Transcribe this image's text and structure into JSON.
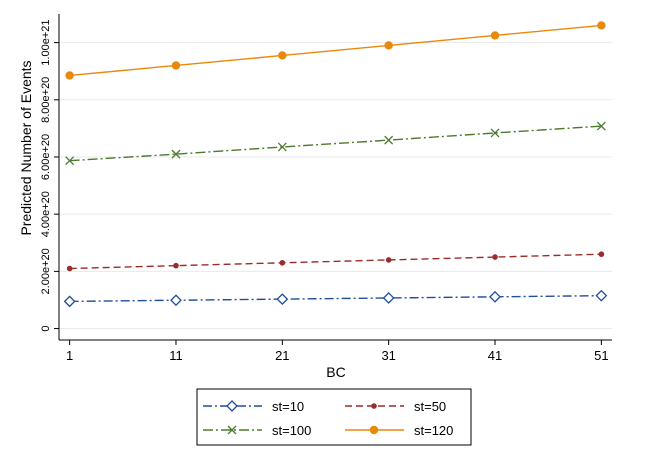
{
  "chart_data": {
    "type": "line",
    "xlabel": "BC",
    "ylabel": "Predicted Number of Events",
    "x": [
      1,
      11,
      21,
      31,
      41,
      51
    ],
    "xticks": [
      "1",
      "11",
      "21",
      "31",
      "41",
      "51"
    ],
    "yticks": [
      {
        "value": 0,
        "label": "0"
      },
      {
        "value": 2e+20,
        "label": "2.00e+20"
      },
      {
        "value": 4e+20,
        "label": "4.00e+20"
      },
      {
        "value": 6e+20,
        "label": "6.00e+20"
      },
      {
        "value": 8e+20,
        "label": "8.00e+20"
      },
      {
        "value": 1e+21,
        "label": "1.00e+21"
      }
    ],
    "ylim": [
      -4e+19,
      1.1e+21
    ],
    "xlim": [
      0,
      52
    ],
    "grid": true,
    "legend_position": "bottom",
    "series": [
      {
        "name": "st=10",
        "values": [
          9.5e+19,
          9.9e+19,
          1.03e+20,
          1.07e+20,
          1.11e+20,
          1.15e+20
        ],
        "color": "#1f4e9c",
        "dash": "9,3,2,3",
        "marker": "diamond"
      },
      {
        "name": "st=50",
        "values": [
          2.1e+20,
          2.2e+20,
          2.3e+20,
          2.4e+20,
          2.5e+20,
          2.6e+20
        ],
        "color": "#9b2c2c",
        "dash": "7,4",
        "marker": "dot"
      },
      {
        "name": "st=100",
        "values": [
          5.87e+20,
          6.1e+20,
          6.35e+20,
          6.59e+20,
          6.84e+20,
          7.08e+20
        ],
        "color": "#4a7a2c",
        "dash": "10,3,2,3",
        "marker": "x"
      },
      {
        "name": "st=120",
        "values": [
          8.85e+20,
          9.2e+20,
          9.55e+20,
          9.9e+20,
          1.025e+21,
          1.06e+21
        ],
        "color": "#e8890c",
        "dash": "",
        "marker": "circle"
      }
    ]
  }
}
